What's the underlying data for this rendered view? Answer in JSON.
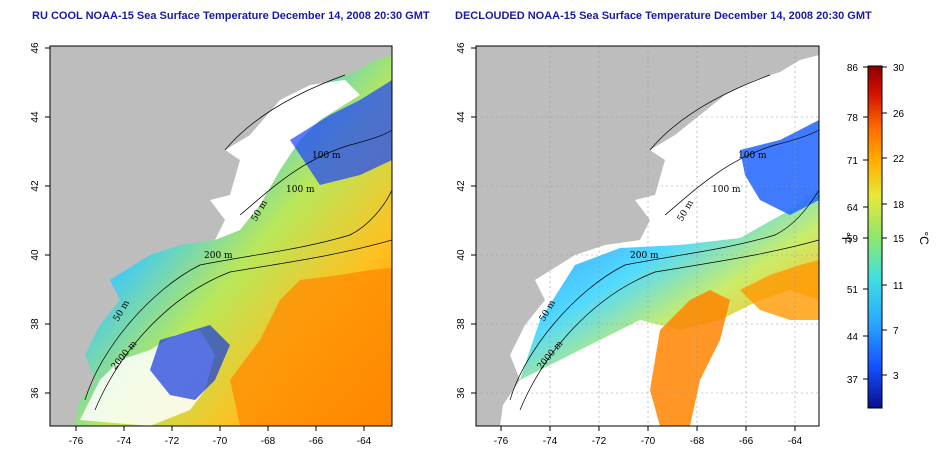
{
  "titles": {
    "left": "RU COOL NOAA-15 Sea Surface Temperature December 14, 2008 20:30 GMT",
    "right": "DECLOUDED NOAA-15 Sea Surface Temperature December 14, 2008 20:30 GMT"
  },
  "axes": {
    "x_ticks": [
      "-76",
      "-74",
      "-72",
      "-70",
      "-68",
      "-66",
      "-64"
    ],
    "y_ticks": [
      "46",
      "44",
      "42",
      "40",
      "38",
      "36"
    ]
  },
  "contour_labels": {
    "left": [
      "100 m",
      "100 m",
      "50 m",
      "200 m",
      "50 m",
      "2000 m"
    ],
    "right": [
      "100 m",
      "100 m",
      "50 m",
      "200 m",
      "50 m",
      "2000 m"
    ]
  },
  "colorbar": {
    "fahrenheit_ticks": [
      "86",
      "78",
      "71",
      "64",
      "59",
      "51",
      "44",
      "37"
    ],
    "celsius_ticks": [
      "30",
      "26",
      "22",
      "18",
      "15",
      "11",
      "7",
      "3"
    ],
    "unit_f": "°F",
    "unit_c": "°C"
  },
  "colors": {
    "land": "#bdbdbd",
    "title": "#1a1aa8",
    "colorbar_stops": [
      "#0a0f8c",
      "#1450ff",
      "#2aa8ff",
      "#3fe0e0",
      "#8fe86a",
      "#e8e83a",
      "#ffb000",
      "#ff6a00",
      "#d41000",
      "#8b0000"
    ]
  }
}
